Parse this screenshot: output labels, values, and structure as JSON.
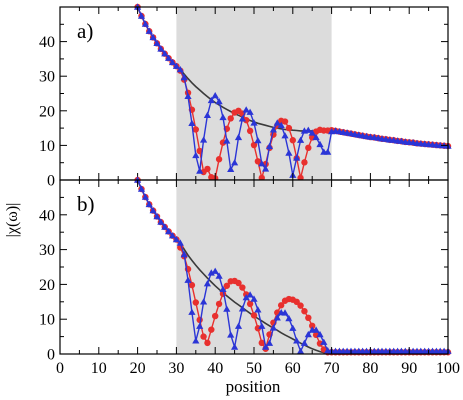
{
  "chart_data": [
    {
      "type": "line",
      "panel_label": "a)",
      "xlabel": "",
      "ylabel": "|χ(ω)|",
      "xlim": [
        0,
        100
      ],
      "ylim": [
        0,
        50
      ],
      "xticks": [
        0,
        10,
        20,
        30,
        40,
        50,
        60,
        70,
        80,
        90,
        100
      ],
      "yticks": [
        0,
        10,
        20,
        30,
        40
      ],
      "ytick_labels": [
        "0",
        "10",
        "20",
        "30",
        "40"
      ],
      "xtick_labels": [],
      "shaded_region": [
        30,
        70
      ],
      "grid": false,
      "series": [
        {
          "kind": "envelope",
          "x": [
            20,
            21,
            22,
            23,
            24,
            25,
            26,
            27,
            28,
            29,
            30,
            31,
            32,
            33,
            34,
            35,
            36,
            37,
            38,
            39,
            40,
            41,
            42,
            43,
            44,
            45,
            46,
            47,
            48,
            49,
            50,
            51,
            52,
            53,
            54,
            55,
            56,
            57,
            58,
            59,
            60,
            61,
            62,
            63,
            64,
            65,
            66,
            67,
            68,
            69,
            70
          ],
          "y": [
            50.0,
            47.4,
            45.1,
            43.0,
            41.2,
            39.5,
            37.9,
            36.5,
            35.2,
            34.0,
            32.9,
            31.9,
            30.6,
            29.3,
            28.1,
            27.0,
            26.0,
            25.0,
            24.1,
            23.2,
            22.4,
            21.7,
            21.0,
            20.4,
            19.8,
            19.2,
            18.7,
            18.2,
            17.7,
            17.2,
            16.8,
            16.4,
            16.1,
            15.8,
            15.5,
            15.2,
            15.0,
            14.8,
            14.6,
            14.5,
            14.4,
            14.3,
            14.2,
            14.2,
            14.2,
            14.2,
            14.2,
            14.2,
            14.3,
            14.4,
            14.6
          ]
        },
        {
          "kind": "red-circles",
          "x": [
            20,
            21,
            22,
            23,
            24,
            25,
            26,
            27,
            28,
            29,
            30,
            31,
            32,
            33,
            34,
            35,
            36,
            37,
            38,
            39,
            40,
            41,
            42,
            43,
            44,
            45,
            46,
            47,
            48,
            49,
            50,
            51,
            52,
            53,
            54,
            55,
            56,
            57,
            58,
            59,
            60,
            61,
            62,
            63,
            64,
            65,
            66,
            67,
            68,
            69,
            70,
            71,
            72,
            73,
            74,
            75,
            76,
            77,
            78,
            79,
            80,
            81,
            82,
            83,
            84,
            85,
            86,
            87,
            88,
            89,
            90,
            91,
            92,
            93,
            94,
            95,
            96,
            97,
            98,
            99,
            100
          ],
          "y": [
            50.0,
            47.4,
            45.1,
            43.0,
            41.2,
            39.5,
            37.9,
            36.5,
            35.2,
            34.0,
            32.9,
            31.6,
            29.0,
            25.2,
            20.3,
            14.6,
            8.4,
            2.3,
            3.2,
            0.8,
            0.5,
            6.0,
            10.8,
            14.8,
            17.8,
            19.5,
            20.0,
            19.2,
            17.3,
            14.2,
            10.1,
            5.4,
            0.6,
            4.6,
            9.3,
            13.1,
            15.8,
            17.1,
            16.9,
            15.0,
            11.5,
            6.3,
            0.6,
            5.1,
            9.3,
            12.3,
            14.0,
            14.5,
            14.3,
            14.3,
            14.4,
            14.2,
            14.0,
            13.8,
            13.6,
            13.4,
            13.2,
            13.0,
            12.8,
            12.6,
            12.4,
            12.3,
            12.1,
            11.9,
            11.8,
            11.6,
            11.5,
            11.3,
            11.2,
            11.0,
            10.9,
            10.8,
            10.6,
            10.5,
            10.4,
            10.3,
            10.2,
            10.1,
            10.0,
            9.9,
            9.8
          ]
        },
        {
          "kind": "blue-triangles",
          "x": [
            20,
            21,
            22,
            23,
            24,
            25,
            26,
            27,
            28,
            29,
            30,
            31,
            32,
            33,
            34,
            35,
            36,
            37,
            38,
            39,
            40,
            41,
            42,
            43,
            44,
            45,
            46,
            47,
            48,
            49,
            50,
            51,
            52,
            53,
            54,
            55,
            56,
            57,
            58,
            59,
            60,
            61,
            62,
            63,
            64,
            65,
            66,
            67,
            68,
            69,
            70,
            71,
            72,
            73,
            74,
            75,
            76,
            77,
            78,
            79,
            80,
            81,
            82,
            83,
            84,
            85,
            86,
            87,
            88,
            89,
            90,
            91,
            92,
            93,
            94,
            95,
            96,
            97,
            98,
            99,
            100
          ],
          "y": [
            50.0,
            47.4,
            45.1,
            43.0,
            41.2,
            39.5,
            37.9,
            36.5,
            35.2,
            34.0,
            32.9,
            31.9,
            29.6,
            24.2,
            16.4,
            7.1,
            2.6,
            11.6,
            18.7,
            23.0,
            24.4,
            22.7,
            18.1,
            11.3,
            3.1,
            5.0,
            12.3,
            17.7,
            20.3,
            19.6,
            16.5,
            11.4,
            4.7,
            3.2,
            9.7,
            14.5,
            16.5,
            15.8,
            12.8,
            7.8,
            1.4,
            6.4,
            11.5,
            14.2,
            14.4,
            13.6,
            12.3,
            10.3,
            8.1,
            8.1,
            14.0,
            14.2,
            14.0,
            13.8,
            13.6,
            13.4,
            13.2,
            13.0,
            12.8,
            12.6,
            12.4,
            12.3,
            12.1,
            11.9,
            11.8,
            11.6,
            11.5,
            11.3,
            11.2,
            11.0,
            10.9,
            10.8,
            10.6,
            10.5,
            10.4,
            10.3,
            10.2,
            10.1,
            10.0,
            9.9,
            9.8
          ]
        }
      ]
    },
    {
      "type": "line",
      "panel_label": "b)",
      "xlabel": "position",
      "ylabel": "",
      "xlim": [
        0,
        100
      ],
      "ylim": [
        0,
        50
      ],
      "xticks": [
        0,
        10,
        20,
        30,
        40,
        50,
        60,
        70,
        80,
        90,
        100
      ],
      "yticks": [
        0,
        10,
        20,
        30,
        40
      ],
      "ytick_labels": [
        "0",
        "10",
        "20",
        "30",
        "40"
      ],
      "xtick_labels": [
        "0",
        "10",
        "20",
        "30",
        "40",
        "50",
        "60",
        "70",
        "80",
        "90",
        "100"
      ],
      "shaded_region": [
        30,
        70
      ],
      "grid": false,
      "series": [
        {
          "kind": "envelope",
          "x": [
            20,
            21,
            22,
            23,
            24,
            25,
            26,
            27,
            28,
            29,
            30,
            31,
            32,
            33,
            34,
            35,
            36,
            37,
            38,
            39,
            40,
            41,
            42,
            43,
            44,
            45,
            46,
            47,
            48,
            49,
            50,
            51,
            52,
            53,
            54,
            55,
            56,
            57,
            58,
            59,
            60,
            61,
            62,
            63,
            64,
            65,
            66,
            67,
            68,
            69,
            70
          ],
          "y": [
            50.0,
            47.4,
            45.1,
            43.0,
            41.2,
            39.5,
            37.9,
            36.5,
            35.2,
            34.0,
            32.9,
            31.9,
            30.1,
            28.4,
            26.9,
            25.5,
            24.2,
            23.0,
            21.8,
            20.7,
            19.6,
            18.6,
            17.6,
            16.7,
            15.8,
            14.9,
            14.1,
            13.3,
            12.5,
            11.7,
            10.9,
            10.2,
            9.5,
            8.8,
            8.1,
            7.4,
            6.8,
            6.1,
            5.5,
            4.9,
            4.3,
            3.7,
            3.1,
            2.6,
            2.0,
            1.5,
            1.1,
            0.7,
            0.4,
            0.2,
            0.0
          ]
        },
        {
          "kind": "red-circles",
          "x": [
            20,
            21,
            22,
            23,
            24,
            25,
            26,
            27,
            28,
            29,
            30,
            31,
            32,
            33,
            34,
            35,
            36,
            37,
            38,
            39,
            40,
            41,
            42,
            43,
            44,
            45,
            46,
            47,
            48,
            49,
            50,
            51,
            52,
            53,
            54,
            55,
            56,
            57,
            58,
            59,
            60,
            61,
            62,
            63,
            64,
            65,
            66,
            67,
            68,
            69,
            70,
            71,
            72,
            73,
            74,
            75,
            76,
            77,
            78,
            79,
            80,
            81,
            82,
            83,
            84,
            85,
            86,
            87,
            88,
            89,
            90,
            91,
            92,
            93,
            94,
            95,
            96,
            97,
            98,
            99,
            100
          ],
          "y": [
            50.0,
            47.4,
            45.1,
            43.0,
            41.2,
            39.5,
            37.9,
            36.5,
            35.2,
            34.0,
            32.9,
            30.6,
            28.1,
            24.4,
            19.8,
            14.8,
            9.8,
            5.0,
            3.2,
            7.0,
            10.9,
            14.4,
            17.3,
            19.6,
            20.9,
            21.0,
            20.4,
            19.1,
            17.1,
            14.4,
            11.1,
            7.4,
            3.2,
            1.5,
            5.6,
            9.0,
            11.9,
            14.0,
            15.3,
            15.8,
            15.6,
            15.0,
            13.9,
            12.3,
            10.4,
            8.1,
            5.5,
            3.0,
            1.3,
            0.5,
            0.5,
            0.5,
            0.5,
            0.5,
            0.5,
            0.5,
            0.5,
            0.5,
            0.5,
            0.5,
            0.5,
            0.5,
            0.5,
            0.5,
            0.5,
            0.5,
            0.5,
            0.5,
            0.5,
            0.5,
            0.5,
            0.5,
            0.5,
            0.5,
            0.5,
            0.5,
            0.5,
            0.5,
            0.5,
            0.5,
            0.5
          ]
        },
        {
          "kind": "blue-triangles",
          "x": [
            20,
            21,
            22,
            23,
            24,
            25,
            26,
            27,
            28,
            29,
            30,
            31,
            32,
            33,
            34,
            35,
            36,
            37,
            38,
            39,
            40,
            41,
            42,
            43,
            44,
            45,
            46,
            47,
            48,
            49,
            50,
            51,
            52,
            53,
            54,
            55,
            56,
            57,
            58,
            59,
            60,
            61,
            62,
            63,
            64,
            65,
            66,
            67,
            68,
            69,
            70,
            71,
            72,
            73,
            74,
            75,
            76,
            77,
            78,
            79,
            80,
            81,
            82,
            83,
            84,
            85,
            86,
            87,
            88,
            89,
            90,
            91,
            92,
            93,
            94,
            95,
            96,
            97,
            98,
            99,
            100
          ],
          "y": [
            50.0,
            47.4,
            45.1,
            43.0,
            41.2,
            39.5,
            37.9,
            36.5,
            35.2,
            34.0,
            32.9,
            31.9,
            28.6,
            21.2,
            12.0,
            3.8,
            8.0,
            15.0,
            20.2,
            23.3,
            23.8,
            22.4,
            18.6,
            12.9,
            5.5,
            2.0,
            8.0,
            13.0,
            16.2,
            17.0,
            15.8,
            12.7,
            8.0,
            2.0,
            3.1,
            7.5,
            10.4,
            11.9,
            11.8,
            10.2,
            7.4,
            3.8,
            0.8,
            3.1,
            5.6,
            6.9,
            6.9,
            5.6,
            3.4,
            1.0,
            0.8,
            0.8,
            0.8,
            0.8,
            0.8,
            0.8,
            0.8,
            0.8,
            0.8,
            0.8,
            0.8,
            0.8,
            0.8,
            0.8,
            0.8,
            0.8,
            0.8,
            0.8,
            0.8,
            0.8,
            0.8,
            0.8,
            0.8,
            0.8,
            0.8,
            0.8,
            0.8,
            0.8,
            0.8,
            0.8,
            0.8
          ]
        }
      ]
    }
  ],
  "colors": {
    "red": "#e8302e",
    "blue": "#2b35d6",
    "envelope": "#3a3a3a",
    "shade": "#dcdcdc"
  }
}
